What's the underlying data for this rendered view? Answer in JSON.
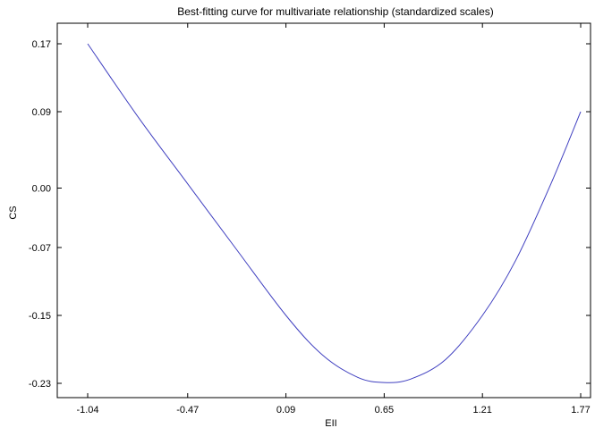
{
  "chart_data": {
    "type": "line",
    "title": "Best-fitting curve for multivariate relationship (standardized scales)",
    "xlabel": "EII",
    "ylabel": "CS",
    "xlim": [
      -1.04,
      1.77
    ],
    "ylim": [
      -0.23,
      0.17
    ],
    "x_ticks": [
      "-1.04",
      "-0.47",
      "0.09",
      "0.65",
      "1.21",
      "1.77"
    ],
    "y_ticks": [
      "0.17",
      "0.09",
      "0.00",
      "-0.07",
      "-0.15",
      "-0.23"
    ],
    "grid": false,
    "series": [
      {
        "color": "#4040c0",
        "x": [
          -1.04,
          -0.75,
          -0.47,
          -0.2,
          0.09,
          0.3,
          0.5,
          0.65,
          0.8,
          1.0,
          1.21,
          1.4,
          1.6,
          1.77
        ],
        "y": [
          0.17,
          0.083,
          0.005,
          -0.07,
          -0.15,
          -0.197,
          -0.223,
          -0.229,
          -0.225,
          -0.202,
          -0.15,
          -0.085,
          0.005,
          0.09
        ]
      }
    ]
  }
}
